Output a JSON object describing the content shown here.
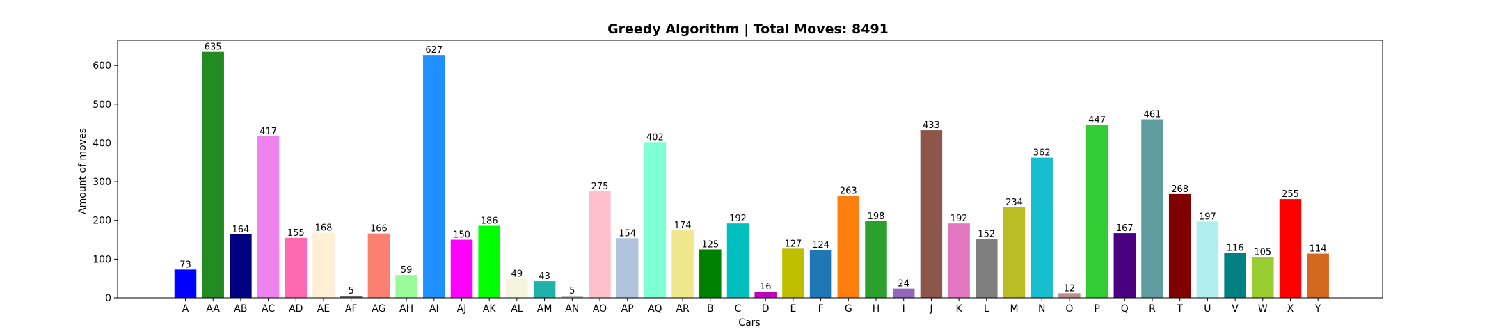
{
  "chart_data": {
    "type": "bar",
    "title": "Greedy Algorithm | Total Moves: 8491",
    "xlabel": "Cars",
    "ylabel": "Amount of moves",
    "ylim": [
      0,
      665
    ],
    "yticks": [
      0,
      100,
      200,
      300,
      400,
      500,
      600
    ],
    "grid": false,
    "legend": "none",
    "categories": [
      "A",
      "AA",
      "AB",
      "AC",
      "AD",
      "AE",
      "AF",
      "AG",
      "AH",
      "AI",
      "AJ",
      "AK",
      "AL",
      "AM",
      "AN",
      "AO",
      "AP",
      "AQ",
      "AR",
      "B",
      "C",
      "D",
      "E",
      "F",
      "G",
      "H",
      "I",
      "J",
      "K",
      "L",
      "M",
      "N",
      "O",
      "P",
      "Q",
      "R",
      "T",
      "U",
      "V",
      "W",
      "X",
      "Y"
    ],
    "values": [
      73,
      635,
      164,
      417,
      155,
      168,
      5,
      166,
      59,
      627,
      150,
      186,
      49,
      43,
      5,
      275,
      154,
      402,
      174,
      125,
      192,
      16,
      127,
      124,
      263,
      198,
      24,
      433,
      192,
      152,
      234,
      362,
      12,
      447,
      167,
      461,
      268,
      197,
      116,
      105,
      255,
      114
    ],
    "colors": [
      "#0000ff",
      "#228b22",
      "#000080",
      "#ee82ee",
      "#ff69b4",
      "#ffefd5",
      "#696969",
      "#fa8072",
      "#98fb98",
      "#1e90ff",
      "#ff00ff",
      "#00ff00",
      "#f5f5dc",
      "#20b2aa",
      "#c0c0c0",
      "#ffc0cb",
      "#b0c4de",
      "#7fffd4",
      "#f0e68c",
      "#008000",
      "#00bfbf",
      "#bf00bf",
      "#bfbf00",
      "#1f77b4",
      "#ff7f0e",
      "#2ca02c",
      "#9467bd",
      "#8c564b",
      "#e377c2",
      "#7f7f7f",
      "#bcbd22",
      "#17becf",
      "#bc8f8f",
      "#32cd32",
      "#4b0082",
      "#5f9ea0",
      "#800000",
      "#afeeee",
      "#008080",
      "#9acd32",
      "#ff0000",
      "#d2691e"
    ]
  }
}
